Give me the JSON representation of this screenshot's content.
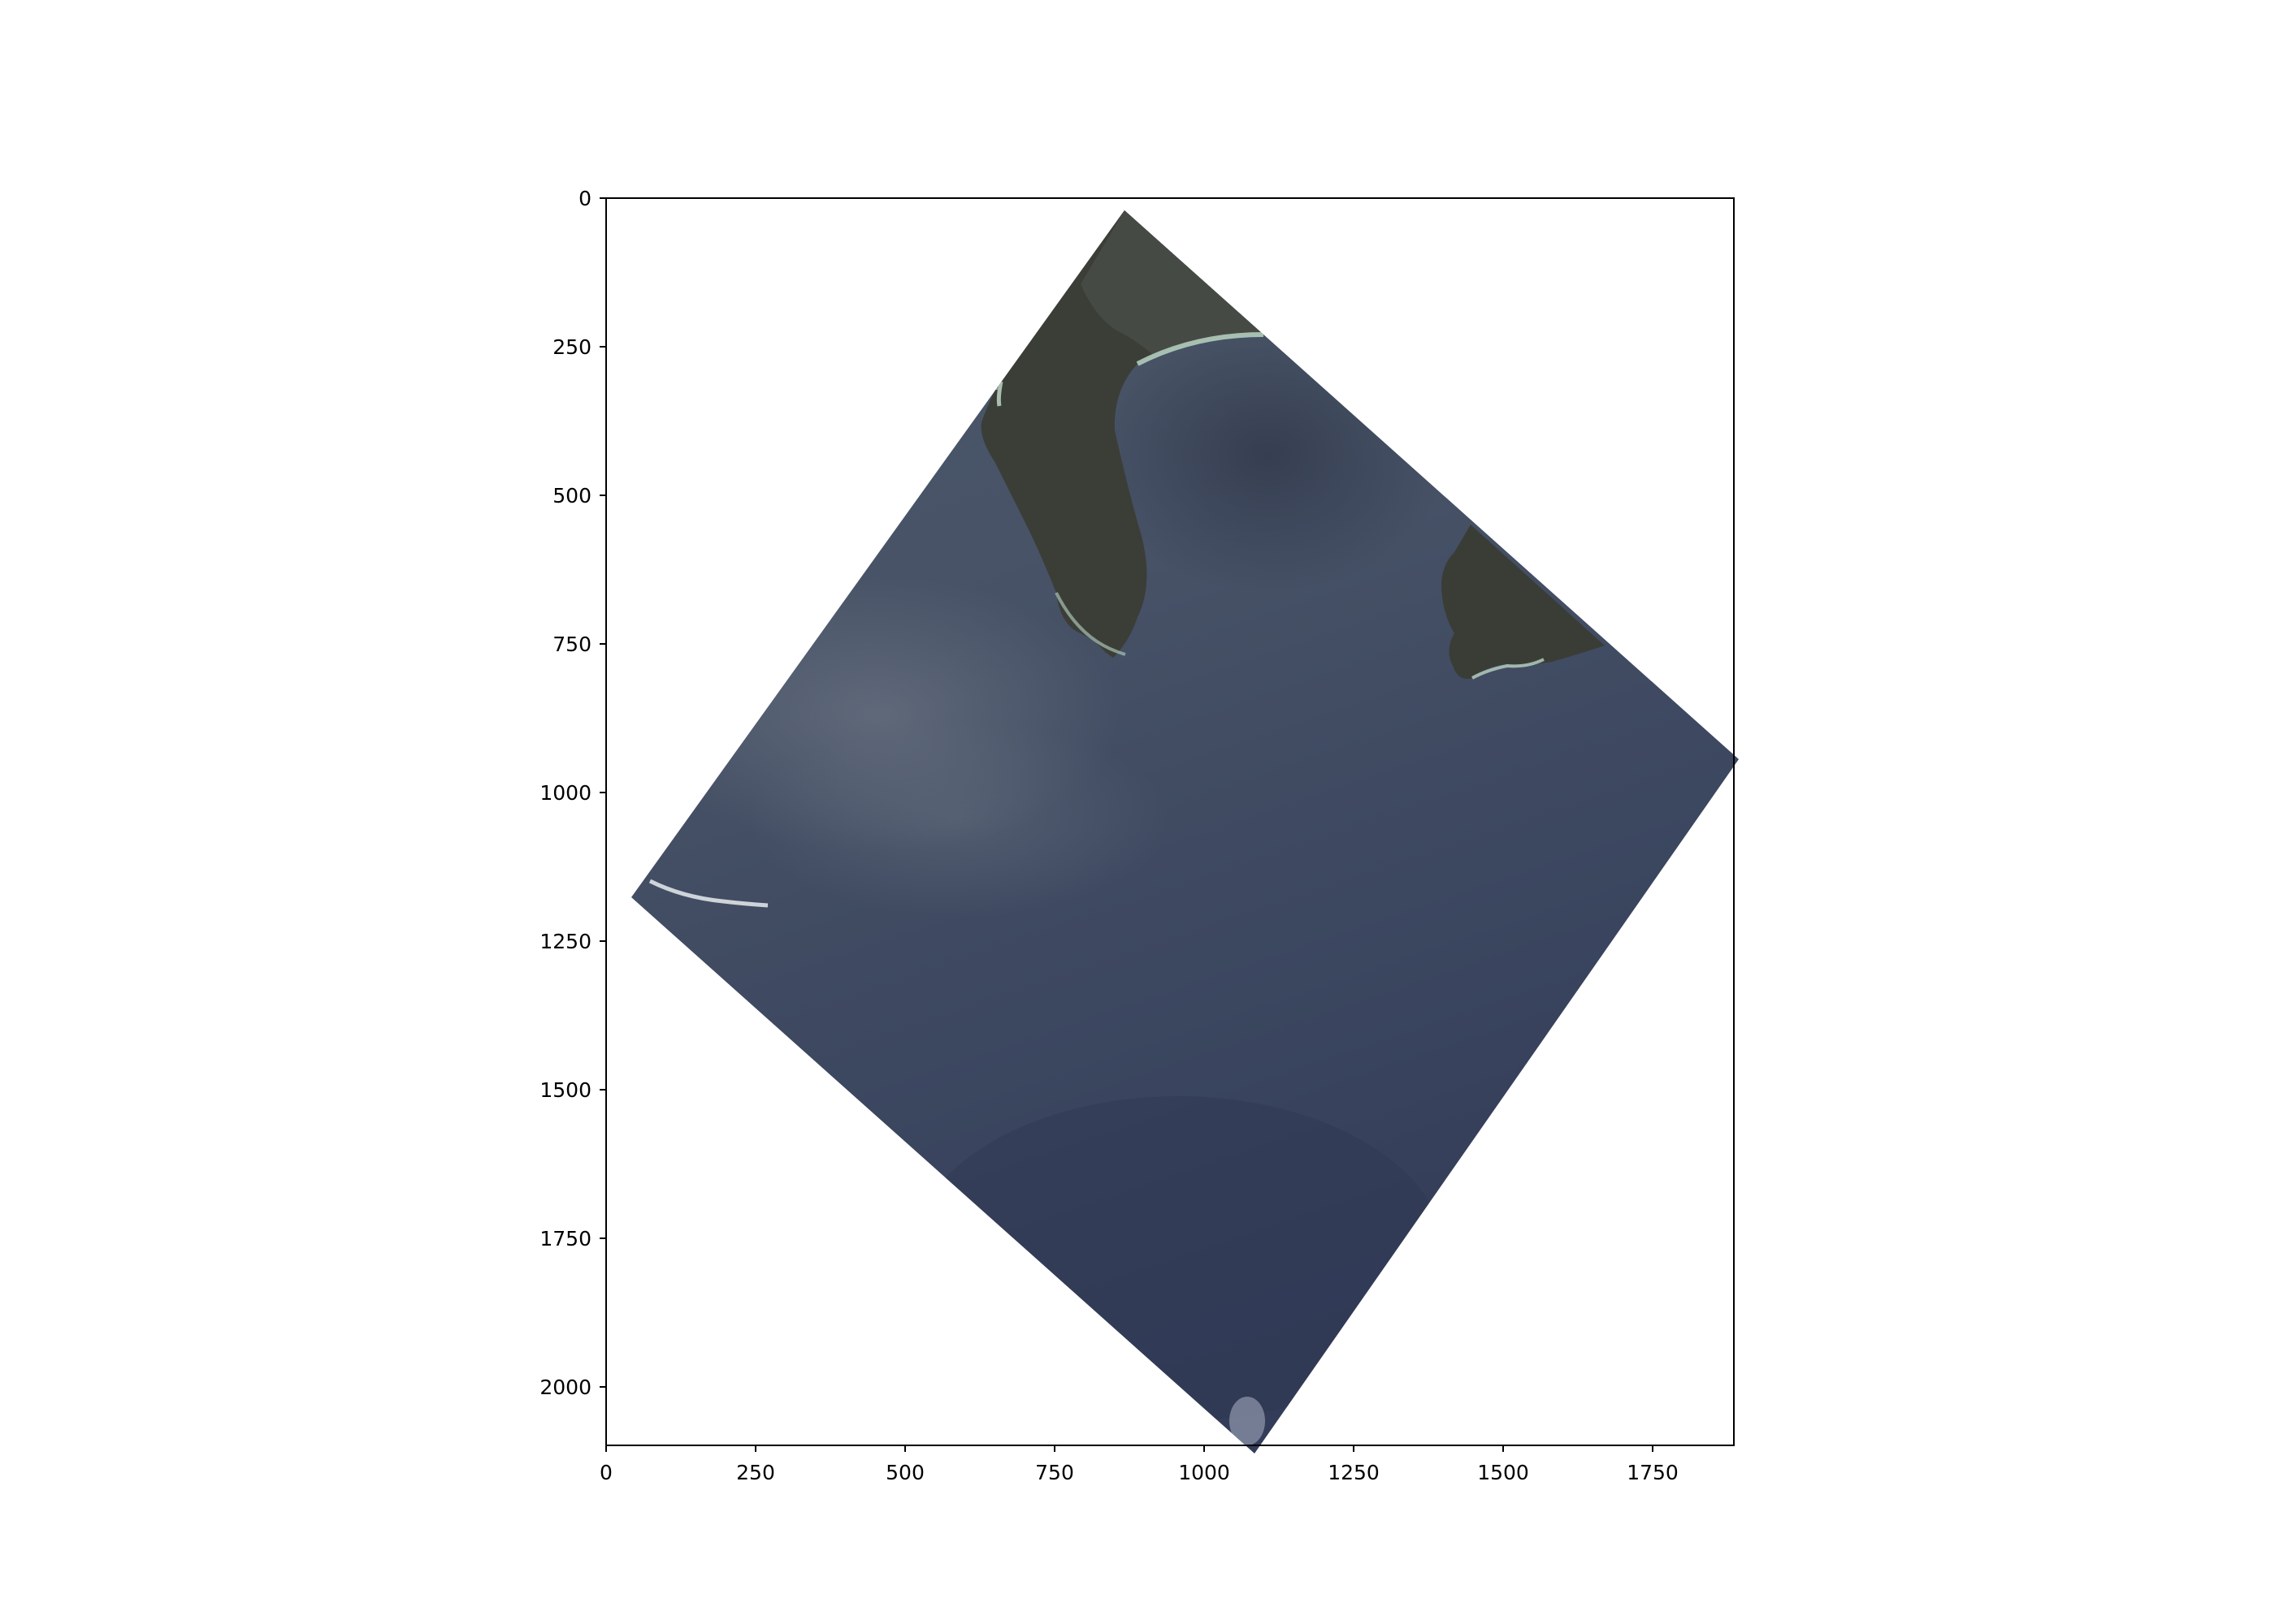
{
  "figure": {
    "background_color": "#ffffff",
    "axes_frame_color": "#000000"
  },
  "axes": {
    "x_ticks": [
      "0",
      "250",
      "500",
      "750",
      "1000",
      "1250",
      "1500",
      "1750"
    ],
    "y_ticks": [
      "0",
      "250",
      "500",
      "750",
      "1000",
      "1250",
      "1500",
      "1750",
      "2000"
    ]
  },
  "image": {
    "content": "satellite-image-coastline",
    "colors": {
      "ocean_dark": "#323a50",
      "ocean_light": "#4b5669",
      "land": "#3a3d36",
      "shore": "#b9d3c2"
    }
  }
}
